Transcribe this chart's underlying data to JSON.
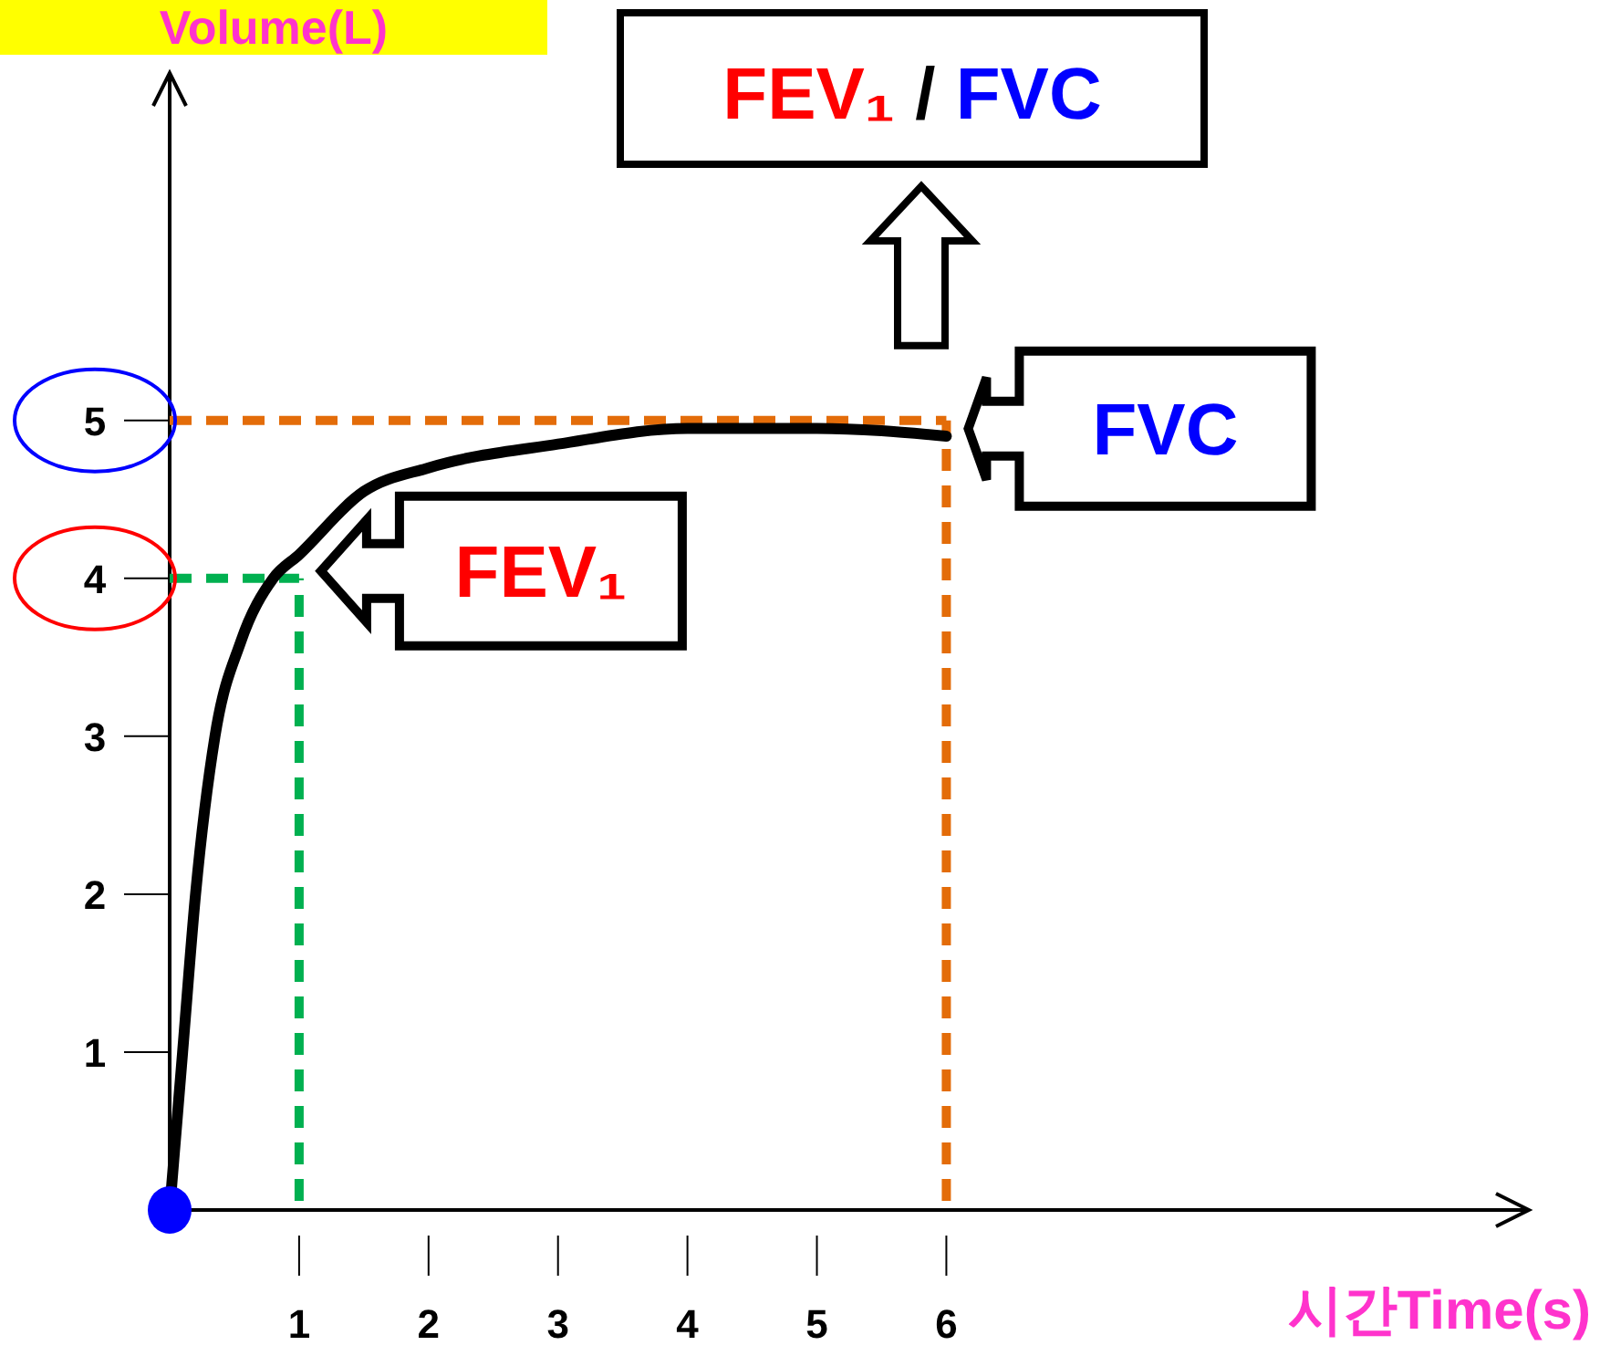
{
  "chart_data": {
    "type": "line",
    "title": "FEV₁ / FVC",
    "xlabel": "시간Time(s)",
    "ylabel": "Volume(L)",
    "xlim": [
      0,
      10.5
    ],
    "ylim": [
      0,
      7.2
    ],
    "xticks": [
      1,
      2,
      3,
      4,
      5,
      6
    ],
    "yticks": [
      1,
      2,
      3,
      4,
      5
    ],
    "series": [
      {
        "color": "#000000",
        "marker": "none",
        "x": [
          0,
          0.05,
          0.1,
          0.2,
          0.35,
          0.55,
          0.8,
          1,
          1.5,
          2,
          3,
          4,
          5,
          6
        ],
        "values": [
          0,
          0.5,
          1,
          2,
          3,
          3.6,
          4,
          4.15,
          4.55,
          4.7,
          4.85,
          4.95,
          4.95,
          4.9
        ]
      },
      {
        "type": "scatter",
        "marker": "circle",
        "color": "#0000ff",
        "x": [
          0
        ],
        "values": [
          0
        ]
      }
    ],
    "line_style": "solid",
    "grid": false,
    "ref_lines": [
      {
        "axis": "x",
        "value": 1,
        "color": "#00b050",
        "line_style": "dashed"
      },
      {
        "axis": "y",
        "value": 4,
        "color": "#00b050",
        "line_style": "dashed"
      },
      {
        "axis": "x",
        "value": 6,
        "color": "#e36c09",
        "line_style": "dashed"
      },
      {
        "axis": "y",
        "value": 5,
        "color": "#e36c09",
        "line_style": "dashed"
      }
    ],
    "annotations": [
      {
        "text": "FEV₁",
        "x": 1,
        "y": 4
      },
      {
        "text": "FVC",
        "x": 6,
        "y": 5
      }
    ]
  }
}
